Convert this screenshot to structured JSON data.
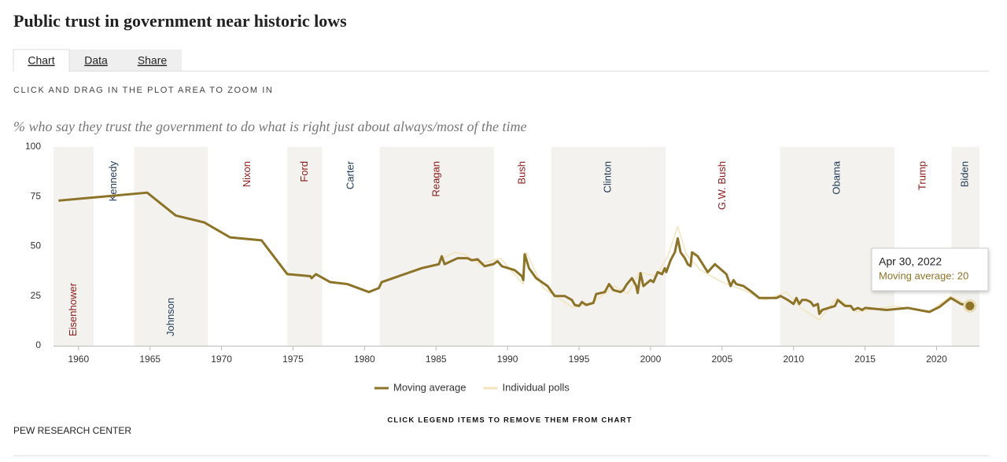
{
  "page": {
    "tabs": [
      "Chart",
      "Data",
      "Share"
    ],
    "hint": "CLICK AND DRAG IN THE PLOT AREA TO ZOOM IN",
    "footer_note": "CLICK LEGEND ITEMS TO REMOVE THEM FROM CHART",
    "source": "PEW RESEARCH CENTER"
  },
  "chart_data": {
    "type": "line",
    "title": "Public trust in government near historic lows",
    "subtitle": "% who say they trust the government to do what is right just about always/most of the time",
    "xlim": [
      1958.25,
      2023.0
    ],
    "xticks": [
      1960,
      1965,
      1970,
      1975,
      1980,
      1985,
      1990,
      1995,
      2000,
      2005,
      2010,
      2015,
      2020
    ],
    "ylim": [
      0,
      100
    ],
    "yticks": [
      0,
      25,
      50,
      75,
      100
    ],
    "grid": false,
    "legend": "bottom",
    "series": [
      {
        "name": "Individual polls",
        "color": "#f2e4bd",
        "x": [
          1985.2,
          1986.3,
          1987.0,
          1988.0,
          1989.5,
          1991.1,
          1991.3,
          1992.5,
          1994.6,
          1996.0,
          1997.5,
          1998.4,
          1999.2,
          2000.4,
          2001.2,
          2001.9,
          2002.5,
          2003.5,
          2005.0,
          2006.5,
          2008.0,
          2009.5,
          2010.5,
          2011.8,
          2013.0,
          2014.5,
          2017.0,
          2019.5,
          2021.0,
          2022.33
        ],
        "values": [
          43,
          47,
          46,
          41,
          44,
          31,
          47,
          29,
          19,
          22,
          30,
          26,
          37,
          35,
          45,
          60,
          46,
          38,
          32,
          28,
          23,
          27,
          19,
          13,
          24,
          17,
          20,
          17,
          25,
          20
        ]
      },
      {
        "name": "Moving average",
        "color": "#8c7328",
        "x": [
          1958.6,
          1964.8,
          1966.8,
          1968.8,
          1970.6,
          1972.8,
          1974.6,
          1976.2,
          1976.3,
          1976.6,
          1977.6,
          1978.8,
          1980.3,
          1981.0,
          1981.2,
          1984.0,
          1985.2,
          1985.4,
          1985.6,
          1986.5,
          1987.2,
          1987.5,
          1987.9,
          1988.4,
          1989.0,
          1989.3,
          1989.6,
          1990.5,
          1991.0,
          1991.1,
          1991.2,
          1991.5,
          1992.0,
          1992.8,
          1993.3,
          1994.0,
          1994.5,
          1994.7,
          1995.0,
          1995.2,
          1995.5,
          1996.0,
          1996.2,
          1996.8,
          1997.1,
          1997.4,
          1997.9,
          1998.1,
          1998.3,
          1998.7,
          1999.0,
          1999.1,
          1999.3,
          1999.5,
          2000.0,
          2000.2,
          2000.5,
          2000.8,
          2001.0,
          2001.1,
          2001.4,
          2001.7,
          2001.9,
          2002.1,
          2002.4,
          2002.6,
          2002.8,
          2002.9,
          2003.3,
          2004.0,
          2004.5,
          2005.3,
          2005.6,
          2005.8,
          2006.0,
          2006.5,
          2007.0,
          2007.6,
          2008.8,
          2009.1,
          2009.6,
          2010.0,
          2010.2,
          2010.4,
          2010.6,
          2010.9,
          2011.2,
          2011.4,
          2011.7,
          2011.8,
          2012.0,
          2012.9,
          2013.1,
          2013.6,
          2014.0,
          2014.2,
          2014.5,
          2014.8,
          2015.0,
          2016.5,
          2018.0,
          2019.5,
          2020.2,
          2021.0,
          2021.7,
          2022.33
        ],
        "values": [
          73,
          77,
          65.5,
          62,
          54.5,
          53,
          36,
          35,
          34,
          36,
          32,
          31,
          27,
          29,
          32,
          39,
          41,
          45,
          41,
          44,
          44,
          43,
          43.5,
          40,
          41,
          42.5,
          40,
          38,
          35,
          33,
          46,
          39,
          34,
          30,
          25,
          25,
          23,
          20.5,
          20,
          22,
          20.5,
          21.5,
          26,
          27,
          31,
          28,
          27,
          28,
          30.5,
          34,
          30,
          26.5,
          36.5,
          30,
          33,
          32,
          37,
          36,
          39,
          37,
          43,
          47,
          54,
          47,
          44,
          41,
          40,
          47,
          45,
          37,
          41,
          36,
          30,
          33,
          31,
          30,
          27.5,
          24,
          24,
          25,
          23,
          21,
          24,
          21,
          23,
          23,
          22,
          20,
          21,
          16,
          18,
          20,
          23,
          20,
          20,
          18,
          19,
          18,
          19,
          18,
          19,
          17,
          19.5,
          24,
          21,
          20
        ]
      }
    ],
    "presidents": [
      {
        "name": "Eisenhower",
        "start": 1953.05,
        "color": "#8b1a1a"
      },
      {
        "name": "Kennedy",
        "start": 1961.05,
        "color": "#1f3b57"
      },
      {
        "name": "Johnson",
        "start": 1963.9,
        "color": "#1f3b57"
      },
      {
        "name": "Nixon",
        "start": 1969.05,
        "color": "#8b1a1a"
      },
      {
        "name": "Ford",
        "start": 1974.6,
        "color": "#8b1a1a"
      },
      {
        "name": "Carter",
        "start": 1977.05,
        "color": "#1f3b57"
      },
      {
        "name": "Reagan",
        "start": 1981.05,
        "color": "#8b1a1a"
      },
      {
        "name": "Bush",
        "start": 1989.05,
        "color": "#8b1a1a"
      },
      {
        "name": "Clinton",
        "start": 1993.05,
        "color": "#1f3b57"
      },
      {
        "name": "G.W. Bush",
        "start": 2001.05,
        "color": "#8b1a1a"
      },
      {
        "name": "Obama",
        "start": 2009.05,
        "color": "#1f3b57"
      },
      {
        "name": "Trump",
        "start": 2017.05,
        "color": "#8b1a1a"
      },
      {
        "name": "Biden",
        "start": 2021.05,
        "color": "#1f3b57"
      }
    ],
    "tooltip": {
      "title": "Apr 30, 2022",
      "text": "Moving average: 20"
    }
  }
}
